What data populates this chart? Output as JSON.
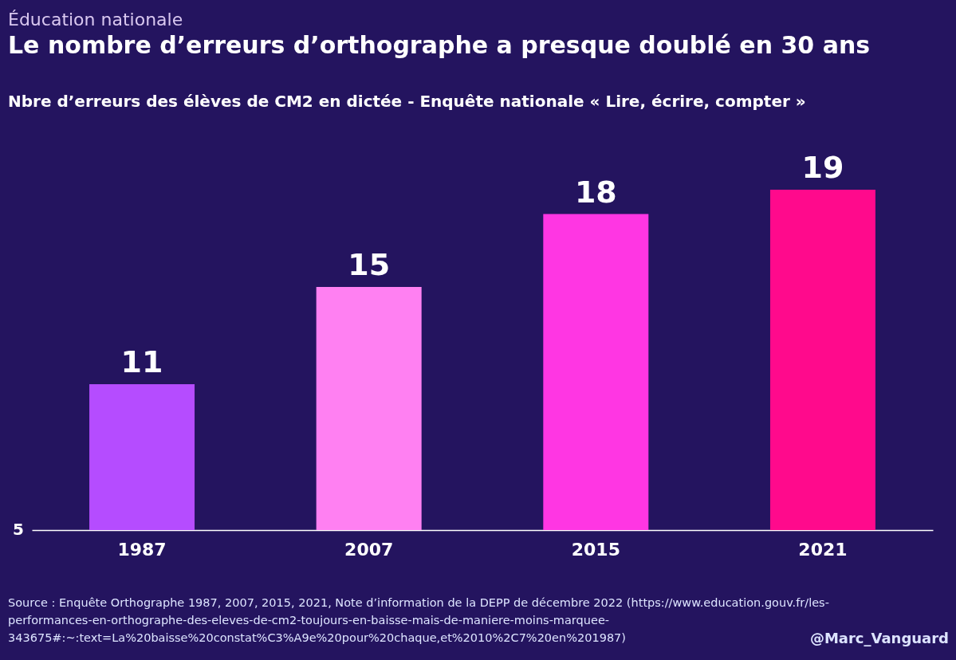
{
  "chart_data": {
    "type": "bar",
    "title": "Le nombre d’erreurs d’orthographe a presque doublé en 30 ans",
    "subtitle": "Nbre d’erreurs des élèves de CM2 en dictée - Enquête nationale « Lire, écrire, compter »",
    "categories": [
      "1987",
      "2007",
      "2015",
      "2021"
    ],
    "values": [
      11,
      15,
      18,
      19
    ],
    "colors": [
      "#b54cff",
      "#ff80f2",
      "#ff36e3",
      "#ff0a8c"
    ],
    "ylim": [
      5,
      19
    ],
    "legend": false,
    "data_labels": true,
    "annotations": [
      "Éducation nationale",
      "5",
      "Source : Enquête Orthographe 1987, 2007, 2015, 2021, Note d’information de la DEPP de décembre 2022 (https://www.education.gouv.fr/les-performances-en-orthographe-des-eleves-de-cm2-toujours-en-baisse-mais-de-maniere-moins-marquee-343675#:~:text=La%20baisse%20constat%C3%A9e%20pour%20chaque,et%2010%2C7%20en%201987)",
      "@Marc_Vanguard"
    ]
  }
}
